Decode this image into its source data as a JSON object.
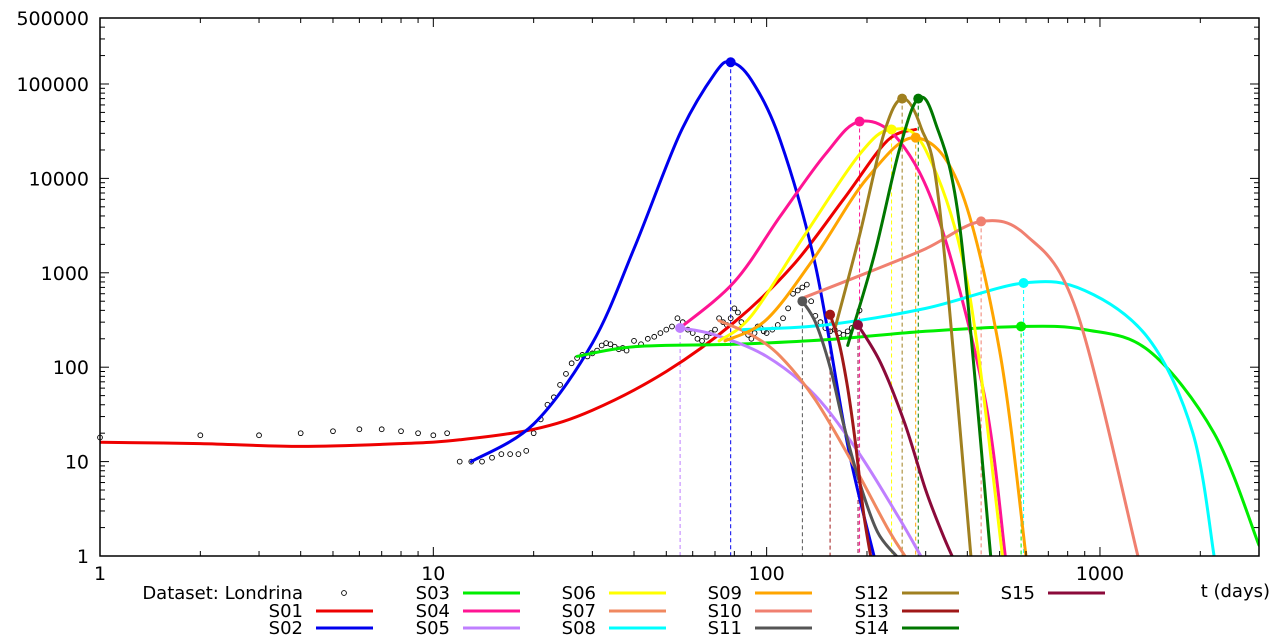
{
  "chart_data": {
    "type": "line",
    "xscale": "log",
    "yscale": "log",
    "xlim": [
      1,
      3000
    ],
    "ylim": [
      1,
      500000
    ],
    "xlabel": "t (days)",
    "ylabel": "",
    "x_ticks": [
      1,
      10,
      100,
      1000
    ],
    "x_tick_labels": [
      "1",
      "10",
      "100",
      "1000"
    ],
    "y_ticks": [
      1,
      10,
      100,
      1000,
      10000,
      100000,
      500000
    ],
    "y_tick_labels": [
      "1",
      "10",
      "100",
      "1000",
      "10000",
      "100000",
      "500000"
    ],
    "grid": false,
    "dataset": {
      "name": "Dataset: Londrina",
      "points": [
        [
          1,
          18
        ],
        [
          2,
          19
        ],
        [
          3,
          19
        ],
        [
          4,
          20
        ],
        [
          5,
          21
        ],
        [
          6,
          22
        ],
        [
          7,
          22
        ],
        [
          8,
          21
        ],
        [
          9,
          20
        ],
        [
          10,
          19
        ],
        [
          11,
          20
        ],
        [
          12,
          10
        ],
        [
          13,
          10
        ],
        [
          14,
          10
        ],
        [
          15,
          11
        ],
        [
          16,
          12
        ],
        [
          17,
          12
        ],
        [
          18,
          12
        ],
        [
          19,
          13
        ],
        [
          20,
          20
        ],
        [
          21,
          28
        ],
        [
          22,
          40
        ],
        [
          23,
          48
        ],
        [
          24,
          65
        ],
        [
          25,
          85
        ],
        [
          26,
          110
        ],
        [
          27,
          125
        ],
        [
          28,
          135
        ],
        [
          29,
          130
        ],
        [
          30,
          140
        ],
        [
          31,
          150
        ],
        [
          32,
          170
        ],
        [
          33,
          180
        ],
        [
          34,
          175
        ],
        [
          35,
          165
        ],
        [
          36,
          155
        ],
        [
          37,
          160
        ],
        [
          38,
          150
        ],
        [
          40,
          190
        ],
        [
          42,
          175
        ],
        [
          44,
          200
        ],
        [
          46,
          210
        ],
        [
          48,
          230
        ],
        [
          50,
          250
        ],
        [
          52,
          270
        ],
        [
          54,
          330
        ],
        [
          56,
          300
        ],
        [
          58,
          250
        ],
        [
          60,
          230
        ],
        [
          62,
          200
        ],
        [
          64,
          190
        ],
        [
          66,
          210
        ],
        [
          68,
          230
        ],
        [
          70,
          250
        ],
        [
          72,
          330
        ],
        [
          74,
          300
        ],
        [
          76,
          280
        ],
        [
          78,
          330
        ],
        [
          80,
          420
        ],
        [
          82,
          380
        ],
        [
          84,
          300
        ],
        [
          86,
          240
        ],
        [
          88,
          220
        ],
        [
          90,
          200
        ],
        [
          92,
          230
        ],
        [
          94,
          270
        ],
        [
          96,
          260
        ],
        [
          98,
          240
        ],
        [
          100,
          230
        ],
        [
          104,
          250
        ],
        [
          108,
          280
        ],
        [
          112,
          330
        ],
        [
          116,
          420
        ],
        [
          120,
          600
        ],
        [
          124,
          650
        ],
        [
          128,
          700
        ],
        [
          132,
          750
        ],
        [
          136,
          500
        ],
        [
          140,
          350
        ],
        [
          145,
          300
        ],
        [
          150,
          260
        ],
        [
          155,
          240
        ],
        [
          160,
          250
        ],
        [
          165,
          230
        ],
        [
          170,
          220
        ],
        [
          175,
          240
        ],
        [
          180,
          260
        ],
        [
          185,
          300
        ],
        [
          190,
          400
        ]
      ]
    },
    "series": [
      {
        "name": "S01",
        "color": "#ee0000",
        "peak": null,
        "x": [
          1,
          2,
          4,
          8,
          12,
          20,
          30,
          50,
          80,
          120,
          170,
          230,
          280
        ],
        "y": [
          16,
          15.5,
          14.5,
          15.5,
          17,
          22,
          35,
          90,
          300,
          1200,
          6000,
          25000,
          33000
        ]
      },
      {
        "name": "S02",
        "color": "#0000ee",
        "peak": [
          78,
          170000
        ],
        "x": [
          13,
          20,
          30,
          40,
          55,
          70,
          78,
          90,
          110,
          140,
          175,
          210
        ],
        "y": [
          10,
          25,
          180,
          1800,
          30000,
          130000,
          170000,
          110000,
          25000,
          1200,
          15,
          1
        ]
      },
      {
        "name": "S03",
        "color": "#00ee00",
        "peak": [
          580,
          270
        ],
        "x": [
          27,
          40,
          80,
          150,
          300,
          580,
          900,
          1400,
          2200,
          3000
        ],
        "y": [
          130,
          165,
          175,
          195,
          240,
          270,
          250,
          150,
          20,
          1.3
        ]
      },
      {
        "name": "S04",
        "color": "#ff1493",
        "peak": [
          190,
          40000
        ],
        "x": [
          55,
          80,
          110,
          150,
          190,
          250,
          330,
          450,
          520
        ],
        "y": [
          260,
          800,
          4000,
          18000,
          40000,
          25000,
          3500,
          50,
          1
        ]
      },
      {
        "name": "S05",
        "color": "#bf7fff",
        "peak": [
          55,
          260
        ],
        "x": [
          55,
          70,
          100,
          140,
          190,
          250,
          290
        ],
        "y": [
          260,
          220,
          130,
          50,
          12,
          2.5,
          1
        ]
      },
      {
        "name": "S06",
        "color": "#ffff00",
        "peak": [
          237,
          33000
        ],
        "x": [
          72,
          90,
          130,
          190,
          237,
          300,
          400,
          510
        ],
        "y": [
          190,
          350,
          2500,
          18000,
          33000,
          20000,
          800,
          1
        ]
      },
      {
        "name": "S07",
        "color": "#f08860",
        "peak": null,
        "x": [
          72,
          90,
          110,
          140,
          180,
          230,
          260
        ],
        "y": [
          310,
          220,
          130,
          45,
          10,
          2,
          1
        ]
      },
      {
        "name": "S08",
        "color": "#00ffff",
        "peak": [
          590,
          780
        ],
        "x": [
          85,
          150,
          300,
          590,
          900,
          1400,
          1900,
          2200
        ],
        "y": [
          250,
          280,
          420,
          780,
          650,
          200,
          20,
          1
        ]
      },
      {
        "name": "S09",
        "color": "#ffa500",
        "peak": [
          280,
          27000
        ],
        "x": [
          75,
          100,
          140,
          200,
          280,
          380,
          500,
          600
        ],
        "y": [
          190,
          320,
          1500,
          10000,
          27000,
          8000,
          150,
          1
        ]
      },
      {
        "name": "S10",
        "color": "#f08070",
        "peak": [
          440,
          3500
        ],
        "x": [
          130,
          200,
          300,
          440,
          600,
          850,
          1300
        ],
        "y": [
          550,
          1000,
          1800,
          3500,
          2500,
          400,
          1
        ]
      },
      {
        "name": "S11",
        "color": "#555555",
        "peak": [
          128,
          500
        ],
        "x": [
          128,
          140,
          155,
          170,
          190,
          215,
          245
        ],
        "y": [
          500,
          300,
          100,
          25,
          6,
          1.8,
          1
        ]
      },
      {
        "name": "S12",
        "color": "#a08020",
        "peak": [
          255,
          70000
        ],
        "x": [
          160,
          190,
          225,
          255,
          290,
          330,
          410
        ],
        "y": [
          250,
          2500,
          30000,
          70000,
          35000,
          5000,
          1
        ]
      },
      {
        "name": "S13",
        "color": "#a01818",
        "peak": [
          155,
          360
        ],
        "x": [
          155,
          165,
          175,
          185,
          195,
          205
        ],
        "y": [
          360,
          180,
          60,
          15,
          3,
          1
        ]
      },
      {
        "name": "S14",
        "color": "#007700",
        "peak": [
          285,
          70000
        ],
        "x": [
          175,
          210,
          250,
          285,
          320,
          380,
          470
        ],
        "y": [
          170,
          1500,
          20000,
          70000,
          40000,
          3000,
          1
        ]
      },
      {
        "name": "S15",
        "color": "#8b0a3a",
        "peak": [
          188,
          280
        ],
        "x": [
          188,
          220,
          260,
          300,
          335,
          360
        ],
        "y": [
          280,
          110,
          25,
          5,
          1.8,
          1
        ]
      }
    ]
  }
}
